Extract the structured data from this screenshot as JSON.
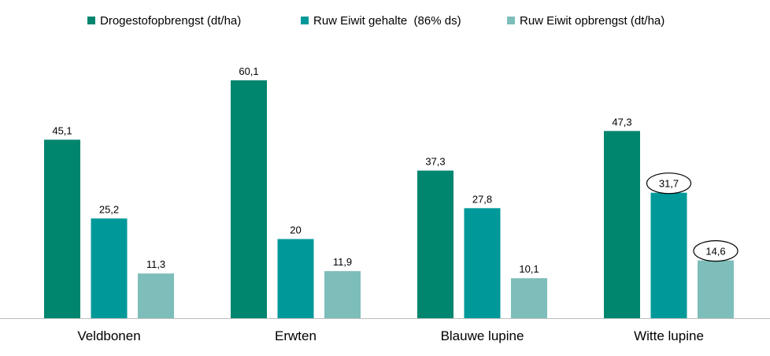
{
  "chart_data": {
    "type": "bar",
    "categories": [
      "Veldbonen",
      "Erwten",
      "Blauwe lupine",
      "Witte lupine"
    ],
    "series": [
      {
        "name": "Drogestofopbrengst (dt/ha)",
        "values": [
          45.1,
          60.1,
          37.3,
          47.3
        ],
        "labels": [
          "45,1",
          "60,1",
          "37,3",
          "47,3"
        ],
        "color": "#00856F"
      },
      {
        "name": "Ruw Eiwit gehalte  (86% ds)",
        "values": [
          25.2,
          20,
          27.8,
          31.7
        ],
        "labels": [
          "25,2",
          "20",
          "27,8",
          "31,7"
        ],
        "color": "#00999A"
      },
      {
        "name": "Ruw Eiwit opbrengst (dt/ha)",
        "values": [
          11.3,
          11.9,
          10.1,
          14.6
        ],
        "labels": [
          "11,3",
          "11,9",
          "10,1",
          "14,6"
        ],
        "color": "#7DBDBA"
      }
    ],
    "highlighted_labels": [
      {
        "series": 1,
        "category": 3
      },
      {
        "series": 2,
        "category": 3
      }
    ],
    "ylim": [
      0,
      60.1
    ],
    "y_axis_visible": false,
    "grid": false,
    "legend_position": "top"
  }
}
